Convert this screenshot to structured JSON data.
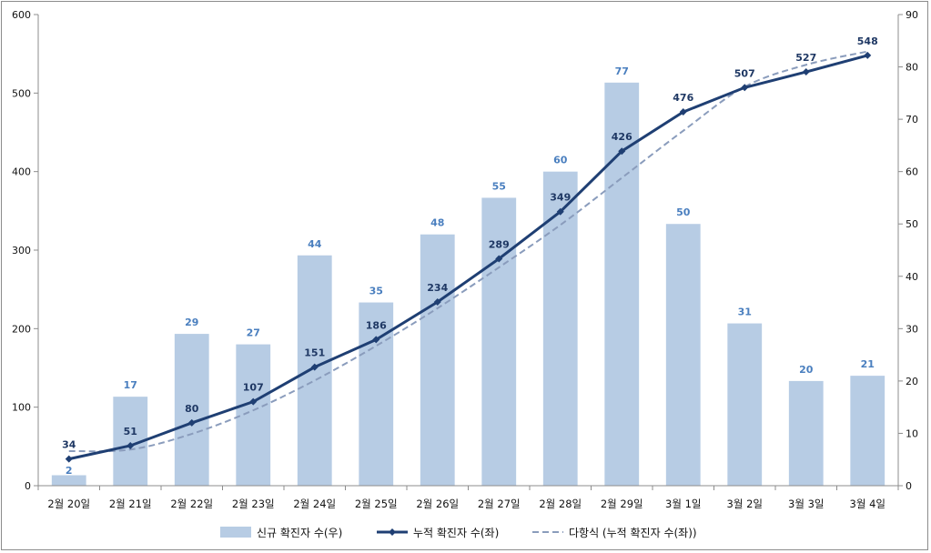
{
  "chart_data": {
    "type": "bar",
    "categories": [
      "2월 20일",
      "2월 21일",
      "2월 22일",
      "2월 23일",
      "2월 24일",
      "2월 25일",
      "2월 26일",
      "2월 27일",
      "2월 28일",
      "2월 29일",
      "3월 1일",
      "3월 2일",
      "3월 3일",
      "3월 4일"
    ],
    "series": [
      {
        "name": "신규 확진자 수(우)",
        "type": "bar",
        "axis": "right",
        "values": [
          2,
          17,
          29,
          27,
          44,
          35,
          48,
          55,
          60,
          77,
          50,
          31,
          20,
          21
        ],
        "color": "#b7cce4"
      },
      {
        "name": "누적 확진자 수(좌)",
        "type": "line",
        "axis": "left",
        "values": [
          34,
          51,
          80,
          107,
          151,
          186,
          234,
          289,
          349,
          426,
          476,
          507,
          527,
          548
        ],
        "color": "#1f3f73"
      },
      {
        "name": "다항식 (누적 확진자 수(좌))",
        "type": "line-dashed",
        "axis": "left",
        "values": [
          44,
          46,
          66,
          96,
          134,
          178,
          226,
          278,
          332,
          392,
          452,
          508,
          536,
          553
        ],
        "color": "#8a9cbc"
      }
    ],
    "left_axis": {
      "ylim": [
        0,
        600
      ],
      "ticks": [
        "0",
        "100",
        "200",
        "300",
        "400",
        "500",
        "600"
      ]
    },
    "right_axis": {
      "ylim": [
        0,
        90
      ],
      "ticks": [
        "0",
        "10",
        "20",
        "30",
        "40",
        "50",
        "60",
        "70",
        "80",
        "90"
      ]
    },
    "legend_position": "bottom",
    "grid": false
  }
}
